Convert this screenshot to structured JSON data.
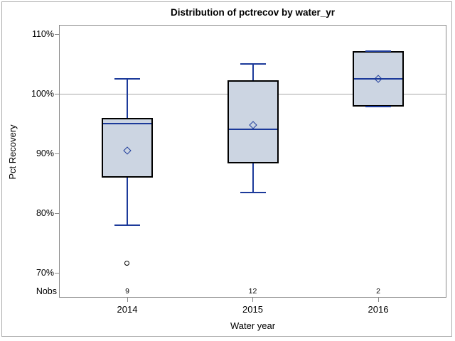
{
  "chart_data": {
    "type": "boxplot",
    "title": "Distribution of pctrecov by water_yr",
    "xlabel": "Water year",
    "ylabel": "Pct Recovery",
    "nobs_label": "Nobs",
    "y_ticks": [
      {
        "value": 110,
        "label": "110%"
      },
      {
        "value": 100,
        "label": "100%"
      },
      {
        "value": 90,
        "label": "90%"
      },
      {
        "value": 80,
        "label": "80%"
      },
      {
        "value": 70,
        "label": "70%"
      }
    ],
    "ylim": [
      65.8,
      111.5
    ],
    "grid": false,
    "reference_line": 100,
    "legend": "none",
    "groups": [
      {
        "category": "2014",
        "nobs": "9",
        "whisker_low": 78,
        "q1": 86,
        "median": 95,
        "q3": 96,
        "whisker_high": 102.5,
        "mean": 90.5,
        "outliers": [
          71.5
        ]
      },
      {
        "category": "2015",
        "nobs": "12",
        "whisker_low": 83.5,
        "q1": 88.3,
        "median": 94,
        "q3": 102.3,
        "whisker_high": 105,
        "mean": 94.8,
        "outliers": []
      },
      {
        "category": "2016",
        "nobs": "2",
        "whisker_low": 97.9,
        "q1": 97.9,
        "median": 102.5,
        "q3": 107.2,
        "whisker_high": 107.2,
        "mean": 102.5,
        "outliers": []
      }
    ],
    "colors": {
      "box_fill": "#ccd5e2",
      "box_border": "#000000",
      "line_blue": "#1c3a9a",
      "reference_line": "#a8a8a8",
      "axis": "#8b8b8b",
      "text": "#000000",
      "background": "#ffffff",
      "figure_border": "#ababab"
    }
  }
}
